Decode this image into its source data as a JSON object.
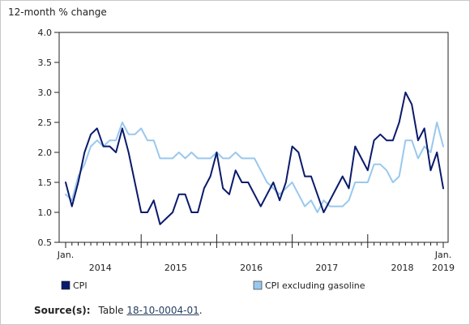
{
  "chart_data": {
    "type": "line",
    "ylabel": "12-month % change",
    "xlabel": "",
    "ylim": [
      0.5,
      4.0
    ],
    "yticks": [
      "0.5",
      "1.0",
      "1.5",
      "2.0",
      "2.5",
      "3.0",
      "3.5",
      "4.0"
    ],
    "x_start": "2014-01",
    "x_end": "2019-01",
    "x_tick_labels": [
      {
        "month": "2014-01",
        "label": "Jan."
      },
      {
        "month": "2019-01",
        "label": "Jan."
      }
    ],
    "year_labels": [
      {
        "year": "2014"
      },
      {
        "year": "2015"
      },
      {
        "year": "2016"
      },
      {
        "year": "2017"
      },
      {
        "year": "2018"
      },
      {
        "year": "2019"
      }
    ],
    "grid": false,
    "legend_position": "bottom",
    "series": [
      {
        "name": "CPI",
        "color": "#0a1a6b",
        "values": [
          1.5,
          1.1,
          1.5,
          2.0,
          2.3,
          2.4,
          2.1,
          2.1,
          2.0,
          2.4,
          2.0,
          1.5,
          1.0,
          1.0,
          1.2,
          0.8,
          0.9,
          1.0,
          1.3,
          1.3,
          1.0,
          1.0,
          1.4,
          1.6,
          2.0,
          1.4,
          1.3,
          1.7,
          1.5,
          1.5,
          1.3,
          1.1,
          1.3,
          1.5,
          1.2,
          1.5,
          2.1,
          2.0,
          1.6,
          1.6,
          1.3,
          1.0,
          1.2,
          1.4,
          1.6,
          1.4,
          2.1,
          1.9,
          1.7,
          2.2,
          2.3,
          2.2,
          2.2,
          2.5,
          3.0,
          2.8,
          2.2,
          2.4,
          1.7,
          2.0,
          1.4
        ]
      },
      {
        "name": "CPI excluding gasoline",
        "color": "#99c8ee",
        "values": [
          1.3,
          1.2,
          1.6,
          1.8,
          2.1,
          2.2,
          2.1,
          2.2,
          2.2,
          2.5,
          2.3,
          2.3,
          2.4,
          2.2,
          2.2,
          1.9,
          1.9,
          1.9,
          2.0,
          1.9,
          2.0,
          1.9,
          1.9,
          1.9,
          2.0,
          1.9,
          1.9,
          2.0,
          1.9,
          1.9,
          1.9,
          1.7,
          1.5,
          1.4,
          1.3,
          1.4,
          1.5,
          1.3,
          1.1,
          1.2,
          1.0,
          1.2,
          1.1,
          1.1,
          1.1,
          1.2,
          1.5,
          1.5,
          1.5,
          1.8,
          1.8,
          1.7,
          1.5,
          1.6,
          2.2,
          2.2,
          1.9,
          2.1,
          2.0,
          2.5,
          2.1
        ]
      }
    ]
  },
  "source": {
    "label": "Source(s):",
    "prefix": "Table",
    "link_text": "18-10-0004-01",
    "suffix": "."
  }
}
